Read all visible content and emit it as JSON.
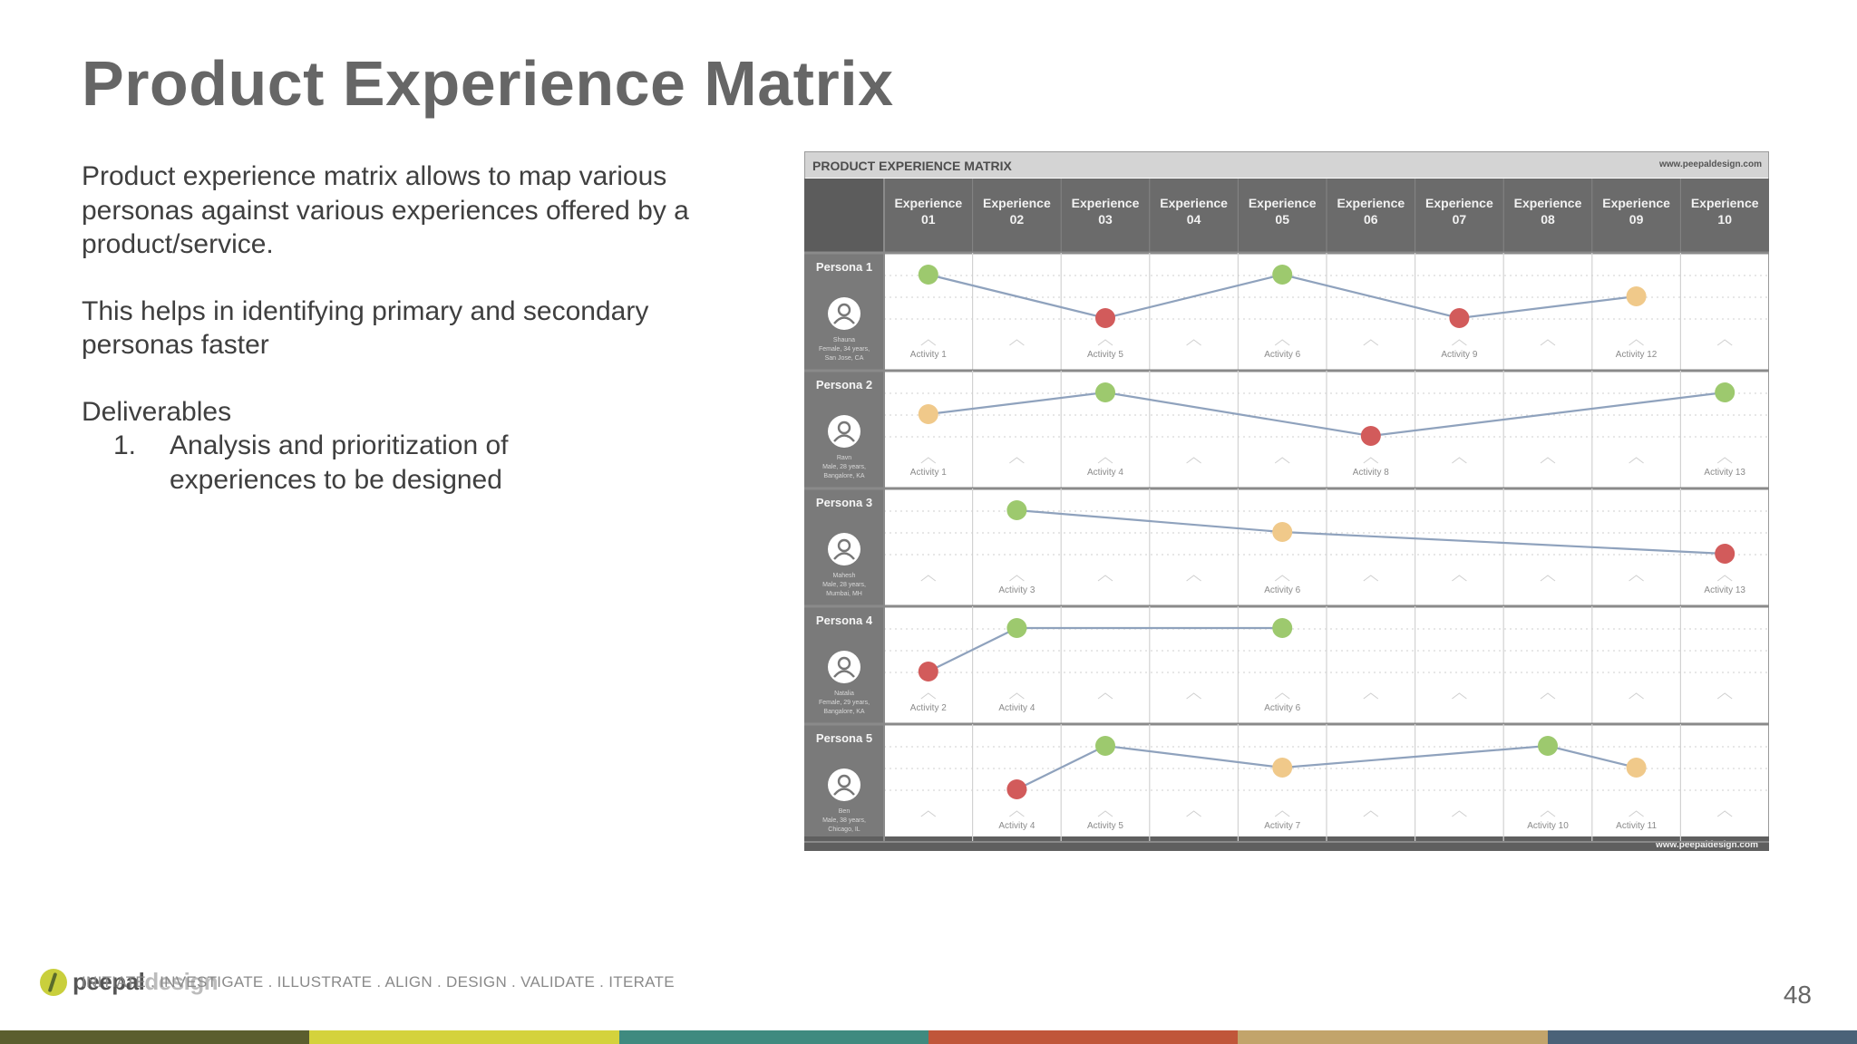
{
  "slide": {
    "title": "Product Experience Matrix",
    "paragraph1": "Product experience matrix allows to map various personas against various experiences offered by a product/service.",
    "paragraph2": "This helps in identifying primary and secondary personas faster",
    "deliverables_heading": "Deliverables",
    "deliverables": [
      {
        "num": "1.",
        "text": "Analysis and prioritization of experiences to be designed"
      }
    ],
    "page_number": "48"
  },
  "matrix": {
    "header_title": "PRODUCT EXPERIENCE MATRIX",
    "header_url": "www.peepaldesign.com",
    "footer_url": "www.peepaldesign.com",
    "experiences": [
      "Experience 01",
      "Experience 02",
      "Experience 03",
      "Experience 04",
      "Experience 05",
      "Experience 06",
      "Experience 07",
      "Experience 08",
      "Experience 09",
      "Experience 10"
    ],
    "personas": [
      {
        "name": "Persona 1",
        "info": [
          "Shauna",
          "Female, 34 years,",
          "San Jose, CA"
        ]
      },
      {
        "name": "Persona 2",
        "info": [
          "Ravn",
          "Male, 28 years,",
          "Bangalore, KA"
        ]
      },
      {
        "name": "Persona 3",
        "info": [
          "Mahesh",
          "Male, 28 years,",
          "Mumbai, MH"
        ]
      },
      {
        "name": "Persona 4",
        "info": [
          "Natalia",
          "Female, 29 years,",
          "Bangalore, KA"
        ]
      },
      {
        "name": "Persona 5",
        "info": [
          "Ben",
          "Male, 38 years,",
          "Chicago, IL"
        ]
      }
    ],
    "colors": {
      "good": "#9dc96e",
      "neutral": "#f0c98a",
      "bad": "#d25b5b",
      "line": "#8fa2bd",
      "frame": "#6b6b6b"
    }
  },
  "chart_data": {
    "type": "line",
    "title": "PRODUCT EXPERIENCE MATRIX",
    "x": [
      "Experience 01",
      "Experience 02",
      "Experience 03",
      "Experience 04",
      "Experience 05",
      "Experience 06",
      "Experience 07",
      "Experience 08",
      "Experience 09",
      "Experience 10"
    ],
    "levels": [
      "good",
      "neutral",
      "bad"
    ],
    "series": [
      {
        "name": "Persona 1",
        "points": [
          {
            "x": 1,
            "level": "good",
            "label": "Activity 1"
          },
          {
            "x": 3,
            "level": "bad",
            "label": "Activity 5"
          },
          {
            "x": 5,
            "level": "good",
            "label": "Activity 6"
          },
          {
            "x": 7,
            "level": "bad",
            "label": "Activity 9"
          },
          {
            "x": 9,
            "level": "neutral",
            "label": "Activity 12"
          }
        ]
      },
      {
        "name": "Persona 2",
        "points": [
          {
            "x": 1,
            "level": "neutral",
            "label": "Activity 1"
          },
          {
            "x": 3,
            "level": "good",
            "label": "Activity 4"
          },
          {
            "x": 6,
            "level": "bad",
            "label": "Activity 8"
          },
          {
            "x": 10,
            "level": "good",
            "label": "Activity 13"
          }
        ]
      },
      {
        "name": "Persona 3",
        "points": [
          {
            "x": 2,
            "level": "good",
            "label": "Activity 3"
          },
          {
            "x": 5,
            "level": "neutral",
            "label": "Activity 6"
          },
          {
            "x": 10,
            "level": "bad",
            "label": "Activity 13"
          }
        ]
      },
      {
        "name": "Persona 4",
        "points": [
          {
            "x": 1,
            "level": "bad",
            "label": "Activity 2"
          },
          {
            "x": 2,
            "level": "good",
            "label": "Activity 4"
          },
          {
            "x": 5,
            "level": "good",
            "label": "Activity 6"
          }
        ]
      },
      {
        "name": "Persona 5",
        "points": [
          {
            "x": 2,
            "level": "bad",
            "label": "Activity 4"
          },
          {
            "x": 3,
            "level": "good",
            "label": "Activity 5"
          },
          {
            "x": 5,
            "level": "neutral",
            "label": "Activity 7"
          },
          {
            "x": 8,
            "level": "good",
            "label": "Activity 10"
          },
          {
            "x": 9,
            "level": "neutral",
            "label": "Activity 11"
          }
        ]
      }
    ]
  },
  "footer": {
    "logo_bold": "peepal",
    "logo_light": "design",
    "tagline": "INITIATE . INVESTIGATE . ILLUSTRATE . ALIGN . DESIGN . VALIDATE . ITERATE",
    "bar_colors": [
      "#5b5e2e",
      "#d4d23c",
      "#3f8a7f",
      "#c0563a",
      "#c2a46b",
      "#4a6278"
    ]
  }
}
